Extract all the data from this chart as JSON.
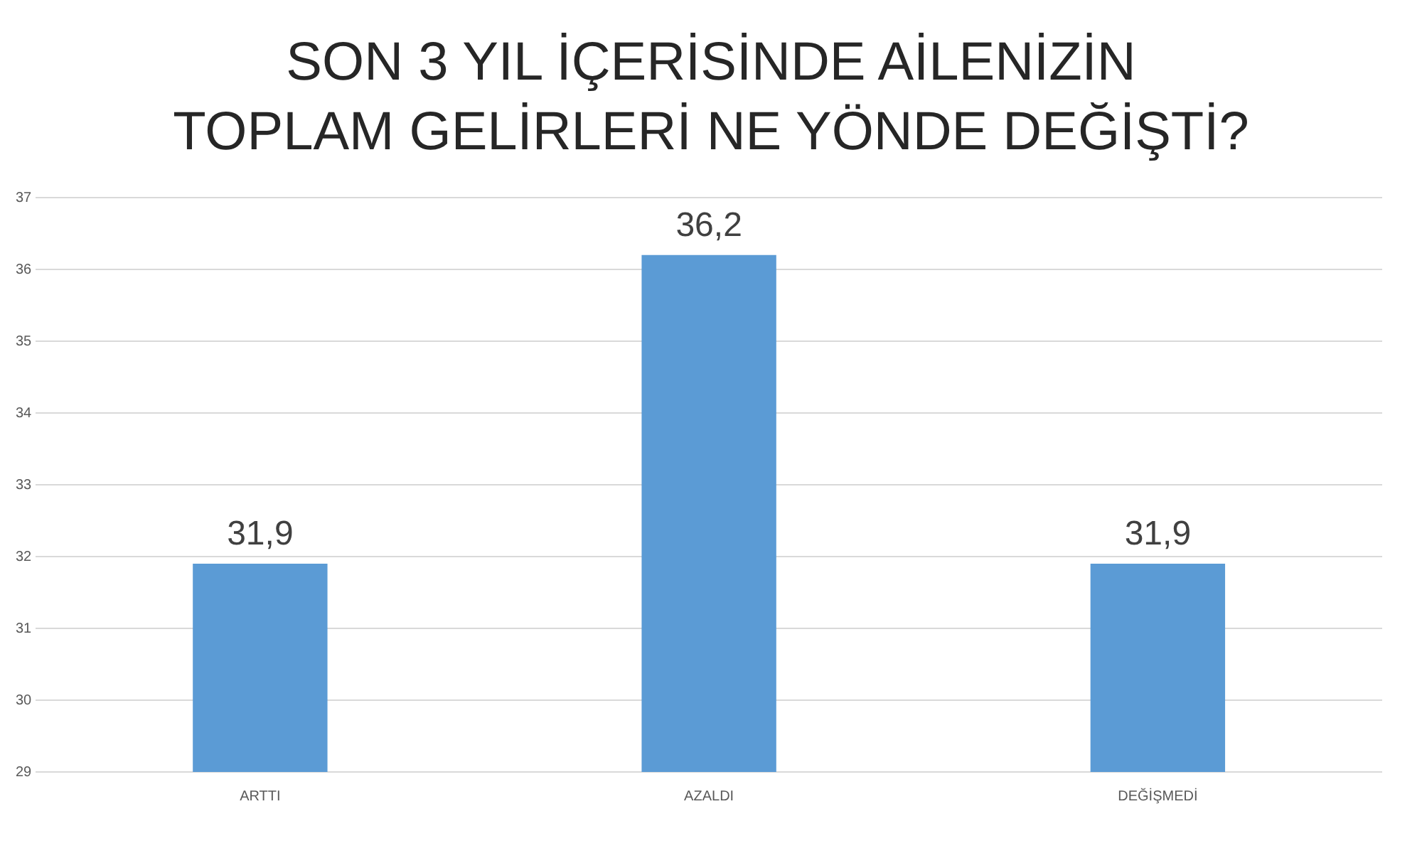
{
  "chart_data": {
    "type": "bar",
    "title": "SON 3 YIL İÇERİSİNDE AİLENİZİN TOPLAM GELİRLERİ NE YÖNDE DEĞİŞTİ?",
    "categories": [
      "ARTTI",
      "AZALDI",
      "DEĞİŞMEDİ"
    ],
    "values": [
      31.9,
      36.2,
      31.9
    ],
    "value_labels": [
      "31,9",
      "36,2",
      "31,9"
    ],
    "color": "#5b9bd5",
    "ylim": [
      29,
      37
    ],
    "yticks": [
      29,
      30,
      31,
      32,
      33,
      34,
      35,
      36,
      37
    ],
    "grid": "y"
  }
}
